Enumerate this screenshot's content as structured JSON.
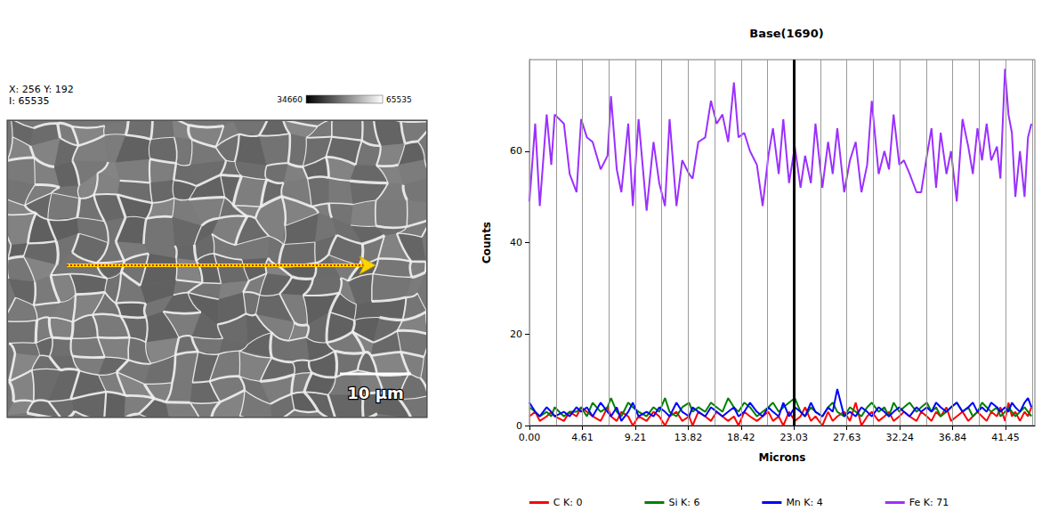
{
  "left_panel": {
    "readout": [
      "X: 256 Y: 192",
      "I: 65535"
    ],
    "colorbar_labels": [
      34660,
      65535
    ],
    "scale_bar": "10 µm"
  },
  "chart_data": {
    "type": "line",
    "title": "Base(1690)",
    "x_label": "Microns",
    "y_label": "Counts",
    "x": [
      0,
      0.5,
      0.9,
      1.5,
      1.9,
      2.2,
      3.0,
      3.5,
      4.1,
      4.5,
      5.0,
      5.5,
      6.2,
      6.8,
      7.1,
      7.6,
      8.0,
      8.6,
      9.0,
      9.5,
      10.2,
      10.8,
      11.3,
      11.8,
      12.2,
      12.8,
      13.3,
      13.9,
      14.2,
      14.7,
      15.3,
      15.8,
      16.3,
      16.8,
      17.3,
      17.8,
      18.2,
      18.7,
      19.2,
      19.8,
      20.3,
      20.8,
      21.2,
      21.7,
      22.1,
      22.6,
      23.1,
      23.6,
      24.0,
      24.5,
      24.9,
      25.5,
      26.0,
      26.4,
      26.8,
      27.4,
      27.9,
      28.4,
      28.9,
      29.4,
      29.8,
      30.4,
      30.9,
      31.3,
      31.7,
      32.2,
      32.6,
      33.1,
      33.7,
      34.1,
      34.6,
      35.0,
      35.4,
      35.8,
      36.3,
      36.7,
      37.2,
      37.7,
      38.2,
      38.6,
      39.0,
      39.4,
      39.8,
      40.2,
      40.7,
      41.0,
      41.4,
      41.7,
      42.0,
      42.3,
      42.7,
      43.1,
      43.4,
      43.7
    ],
    "series": [
      {
        "name": "C K: 0",
        "color": "#ff0000",
        "values": [
          2,
          3,
          1,
          2,
          3,
          2,
          1,
          3,
          2,
          4,
          3,
          2,
          1,
          4,
          2,
          1,
          3,
          2,
          0,
          2,
          1,
          3,
          2,
          0,
          2,
          3,
          1,
          2,
          0,
          3,
          2,
          1,
          3,
          2,
          1,
          2,
          0,
          3,
          2,
          1,
          2,
          3,
          1,
          2,
          0,
          3,
          1,
          2,
          4,
          1,
          2,
          0,
          3,
          1,
          2,
          3,
          1,
          5,
          0,
          2,
          3,
          1,
          2,
          3,
          1,
          2,
          3,
          2,
          1,
          3,
          2,
          1,
          3,
          2,
          4,
          1,
          2,
          3,
          1,
          2,
          3,
          2,
          1,
          3,
          2,
          4,
          1,
          5,
          2,
          3,
          1,
          3,
          2,
          4
        ]
      },
      {
        "name": "Si K: 6",
        "color": "#008000",
        "values": [
          4,
          3,
          2,
          3,
          2,
          4,
          2,
          3,
          3,
          4,
          2,
          5,
          3,
          4,
          6,
          3,
          2,
          5,
          4,
          3,
          2,
          4,
          3,
          6,
          3,
          2,
          4,
          5,
          3,
          4,
          3,
          5,
          4,
          3,
          6,
          4,
          3,
          5,
          4,
          2,
          3,
          4,
          5,
          3,
          4,
          5,
          6,
          3,
          2,
          4,
          3,
          2,
          4,
          5,
          3,
          2,
          4,
          3,
          2,
          4,
          5,
          3,
          4,
          2,
          5,
          3,
          4,
          5,
          3,
          4,
          5,
          3,
          4,
          2,
          3,
          4,
          5,
          3,
          4,
          2,
          3,
          5,
          4,
          3,
          4,
          2,
          3,
          4,
          3,
          2,
          3,
          4,
          3,
          2
        ]
      },
      {
        "name": "Mn K: 4",
        "color": "#0000ff",
        "values": [
          5,
          3,
          2,
          4,
          3,
          2,
          3,
          2,
          4,
          3,
          4,
          2,
          5,
          3,
          2,
          4,
          1,
          3,
          5,
          2,
          3,
          2,
          4,
          3,
          2,
          5,
          3,
          2,
          4,
          3,
          2,
          4,
          3,
          2,
          3,
          4,
          2,
          3,
          5,
          3,
          2,
          4,
          3,
          2,
          5,
          2,
          4,
          3,
          2,
          5,
          3,
          2,
          4,
          3,
          8,
          2,
          3,
          2,
          4,
          3,
          2,
          4,
          3,
          2,
          3,
          4,
          3,
          2,
          4,
          3,
          4,
          3,
          5,
          4,
          3,
          4,
          5,
          3,
          4,
          5,
          3,
          4,
          3,
          5,
          4,
          3,
          4,
          3,
          5,
          4,
          3,
          5,
          6,
          4
        ]
      },
      {
        "name": "Fe K: 71",
        "color": "#9b30ff",
        "values": [
          49,
          66,
          48,
          68,
          57,
          68,
          66,
          55,
          51,
          67,
          63,
          62,
          56,
          59,
          72,
          56,
          51,
          66,
          48,
          67,
          47,
          62,
          53,
          48,
          67,
          48,
          58,
          55,
          54,
          62,
          63,
          71,
          66,
          68,
          62,
          75,
          63,
          64,
          60,
          57,
          48,
          59,
          65,
          55,
          67,
          53,
          61,
          52,
          59,
          53,
          66,
          52,
          62,
          55,
          65,
          51,
          58,
          62,
          51,
          57,
          71,
          55,
          60,
          56,
          68,
          57,
          58,
          55,
          51,
          51,
          59,
          65,
          52,
          64,
          55,
          60,
          49,
          67,
          61,
          55,
          65,
          58,
          66,
          58,
          61,
          54,
          78,
          68,
          64,
          50,
          60,
          50,
          63,
          66
        ]
      }
    ],
    "cursor": 23.03,
    "xlim": [
      0,
      44
    ],
    "ylim": [
      0,
      80
    ],
    "xticks": [
      {
        "value": 0,
        "label": "0.00"
      },
      4.61,
      9.21,
      13.82,
      18.42,
      23.03,
      27.63,
      32.24,
      36.84,
      41.45
    ],
    "yticks": [
      0,
      20,
      40,
      60
    ],
    "grid": true,
    "legend": "bottom"
  }
}
